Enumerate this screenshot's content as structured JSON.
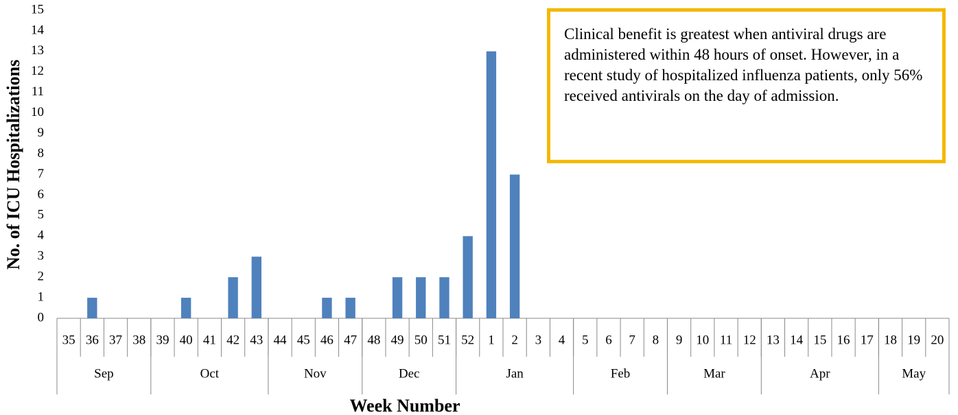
{
  "chart_data": {
    "type": "bar",
    "x_label": "Week Number",
    "y_label": "No. of ICU Hospitalizations",
    "annotation": "Clinical benefit is greatest when antiviral drugs are administered within 48 hours of onset. However, in a recent study of hospitalized influenza patients, only 56% received antivirals on the day of admission.",
    "categories": [
      "35",
      "36",
      "37",
      "38",
      "39",
      "40",
      "41",
      "42",
      "43",
      "44",
      "45",
      "46",
      "47",
      "48",
      "49",
      "50",
      "51",
      "52",
      "1",
      "2",
      "3",
      "4",
      "5",
      "6",
      "7",
      "8",
      "9",
      "10",
      "11",
      "12",
      "13",
      "14",
      "15",
      "16",
      "17",
      "18",
      "19",
      "20"
    ],
    "values": [
      0,
      1,
      0,
      0,
      0,
      1,
      0,
      2,
      3,
      0,
      0,
      1,
      1,
      0,
      2,
      2,
      2,
      4,
      13,
      7,
      0,
      0,
      0,
      0,
      0,
      0,
      0,
      0,
      0,
      0,
      0,
      0,
      0,
      0,
      0,
      0,
      0,
      0
    ],
    "groups": [
      {
        "name": "Sep",
        "weeks": 4
      },
      {
        "name": "Oct",
        "weeks": 5
      },
      {
        "name": "Nov",
        "weeks": 4
      },
      {
        "name": "Dec",
        "weeks": 4
      },
      {
        "name": "Jan",
        "weeks": 5
      },
      {
        "name": "Feb",
        "weeks": 4
      },
      {
        "name": "Mar",
        "weeks": 4
      },
      {
        "name": "Apr",
        "weeks": 5
      },
      {
        "name": "May",
        "weeks": 3
      }
    ],
    "color": "#4f81bd",
    "ylim": [
      0,
      15
    ],
    "yticks": [
      0,
      1,
      2,
      3,
      4,
      5,
      6,
      7,
      8,
      9,
      10,
      11,
      12,
      13,
      14,
      15
    ]
  }
}
